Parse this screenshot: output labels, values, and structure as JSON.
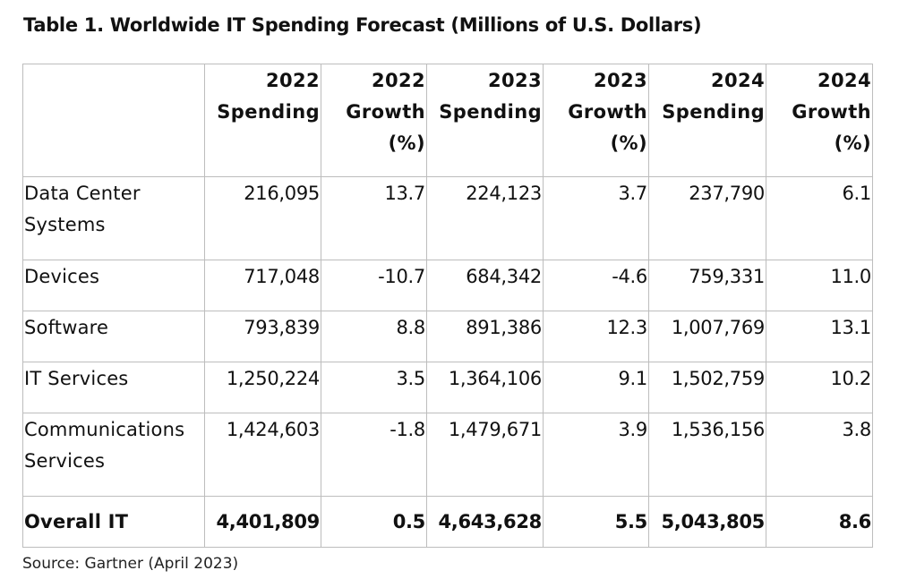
{
  "title": "Table 1. Worldwide IT Spending Forecast (Millions of U.S. Dollars)",
  "columns": [
    {
      "line1": "",
      "line2": "",
      "line3": ""
    },
    {
      "line1": "2022",
      "line2": "Spending",
      "line3": ""
    },
    {
      "line1": "2022",
      "line2": "Growth",
      "line3": "(%)"
    },
    {
      "line1": "2023",
      "line2": "Spending",
      "line3": ""
    },
    {
      "line1": "2023",
      "line2": "Growth",
      "line3": "(%)"
    },
    {
      "line1": "2024",
      "line2": "Spending",
      "line3": ""
    },
    {
      "line1": "2024",
      "line2": "Growth",
      "line3": "(%)"
    }
  ],
  "rows": [
    {
      "segment": "Data Center Systems",
      "spend_2022": "216,095",
      "growth_2022": "13.7",
      "spend_2023": "224,123",
      "growth_2023": "3.7",
      "spend_2024": "237,790",
      "growth_2024": "6.1"
    },
    {
      "segment": "Devices",
      "spend_2022": "717,048",
      "growth_2022": "-10.7",
      "spend_2023": "684,342",
      "growth_2023": "-4.6",
      "spend_2024": "759,331",
      "growth_2024": "11.0"
    },
    {
      "segment": "Software",
      "spend_2022": "793,839",
      "growth_2022": "8.8",
      "spend_2023": "891,386",
      "growth_2023": "12.3",
      "spend_2024": "1,007,769",
      "growth_2024": "13.1"
    },
    {
      "segment": "IT Services",
      "spend_2022": "1,250,224",
      "growth_2022": "3.5",
      "spend_2023": "1,364,106",
      "growth_2023": "9.1",
      "spend_2024": "1,502,759",
      "growth_2024": "10.2"
    },
    {
      "segment": "Communications Services",
      "spend_2022": "1,424,603",
      "growth_2022": "-1.8",
      "spend_2023": "1,479,671",
      "growth_2023": "3.9",
      "spend_2024": "1,536,156",
      "growth_2024": "3.8"
    }
  ],
  "total": {
    "segment": "Overall IT",
    "spend_2022": "4,401,809",
    "growth_2022": "0.5",
    "spend_2023": "4,643,628",
    "growth_2023": "5.5",
    "spend_2024": "5,043,805",
    "growth_2024": "8.6"
  },
  "source": "Source: Gartner (April 2023)"
}
